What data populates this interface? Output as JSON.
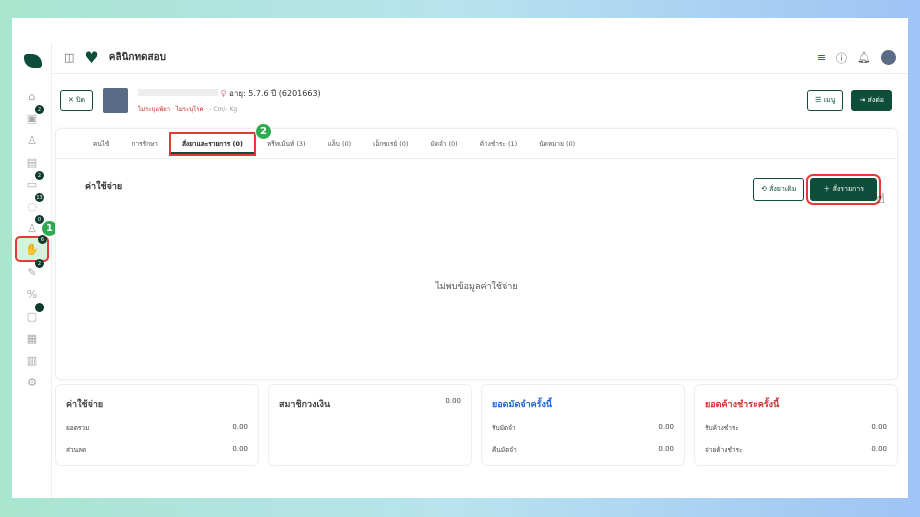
{
  "header": {
    "clinic": "คลินิกทดสอบ",
    "menu_label": "เมนู",
    "forward_label": "ส่งต่อ"
  },
  "sidebar": {
    "badges": [
      "2",
      "2",
      "13",
      "0",
      "6",
      "2"
    ]
  },
  "steps": [
    "1",
    "2"
  ],
  "patient": {
    "close_label": "ปิด",
    "age": "อายุ: 5.7.6 ปี (6201663)",
    "allergy": "ไม่ระบุแพ้ยา",
    "disease": "ไม่ระบุโรค",
    "body": "- Cm/- Kg"
  },
  "tabs": [
    {
      "label": "คนไข้"
    },
    {
      "label": "การรักษา"
    },
    {
      "label": "สั่งยาและรายการ (0)"
    },
    {
      "label": "ทรีทเม้นท์ (3)"
    },
    {
      "label": "แล็บ (0)"
    },
    {
      "label": "เอ็กซเรย์ (0)"
    },
    {
      "label": "มัดจำ (0)"
    },
    {
      "label": "ค้างชำระ (1)"
    },
    {
      "label": "นัดหมาย (0)"
    }
  ],
  "section": {
    "title": "ค่าใช้จ่าย",
    "reorder_label": "สั่งยาเดิม",
    "order_label": "สั่งรายการ",
    "empty": "ไม่พบข้อมูลค่าใช้จ่าย"
  },
  "cards": [
    {
      "title": "ค่าใช้จ่าย",
      "rows": [
        {
          "label": "ยอดรวม",
          "value": "0.00"
        },
        {
          "label": "ส่วนลด",
          "value": "0.00"
        }
      ]
    },
    {
      "title": "สมาชิกวงเงิน",
      "value": "0.00"
    },
    {
      "title": "ยอดมัดจำครั้งนี้",
      "rows": [
        {
          "label": "รับมัดจำ",
          "value": "0.00"
        },
        {
          "label": "คืนมัดจำ",
          "value": "0.00"
        }
      ]
    },
    {
      "title": "ยอดค้างชำระครั้งนี้",
      "rows": [
        {
          "label": "รับค้างชำระ",
          "value": "0.00"
        },
        {
          "label": "จ่ายค้างชำระ",
          "value": "0.00"
        }
      ]
    }
  ],
  "colors": {
    "brand": "#0e4d3a",
    "highlight": "#e53935",
    "step": "#2eaa4f"
  }
}
